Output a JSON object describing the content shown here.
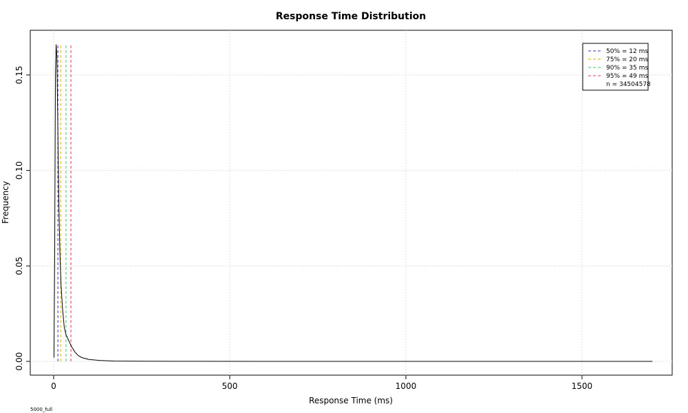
{
  "chart_data": {
    "type": "line",
    "title": "Response Time Distribution",
    "x_label": "Response Time (ms)",
    "y_label": "Frequency",
    "footnote": "5000_full",
    "x": [
      1,
      3,
      5,
      7,
      9,
      11,
      13,
      15,
      18,
      21,
      25,
      30,
      35,
      40,
      45,
      50,
      60,
      70,
      80,
      100,
      130,
      170,
      250,
      400,
      700,
      1000,
      1400,
      1700
    ],
    "series": [
      {
        "color": "#000000",
        "values": [
          0.002,
          0.06,
          0.15,
          0.166,
          0.16,
          0.135,
          0.105,
          0.08,
          0.055,
          0.04,
          0.028,
          0.018,
          0.014,
          0.012,
          0.01,
          0.008,
          0.005,
          0.003,
          0.002,
          0.001,
          0.0005,
          0.0002,
          0.0001,
          5e-05,
          0,
          0,
          0,
          0
        ]
      }
    ],
    "percentiles": [
      {
        "label": "50% = 12 ms",
        "value": 12,
        "color": "#3333cc"
      },
      {
        "label": "75% = 20 ms",
        "value": 20,
        "color": "#e6a800"
      },
      {
        "label": "90% = 35 ms",
        "value": 35,
        "color": "#33cc66"
      },
      {
        "label": "95% = 49 ms",
        "value": 49,
        "color": "#e03050"
      }
    ],
    "n_label": "n = 34504578",
    "xlim": [
      -66.4,
      1756
    ],
    "ylim": [
      -0.0072,
      0.1734
    ],
    "xticks": [
      0,
      500,
      1000,
      1500
    ],
    "yticks": [
      {
        "value": 0,
        "label": "0.00"
      },
      {
        "value": 0.05,
        "label": "0.05"
      },
      {
        "value": 0.1,
        "label": "0.10"
      },
      {
        "value": 0.15,
        "label": "0.15"
      }
    ],
    "grid": true
  }
}
